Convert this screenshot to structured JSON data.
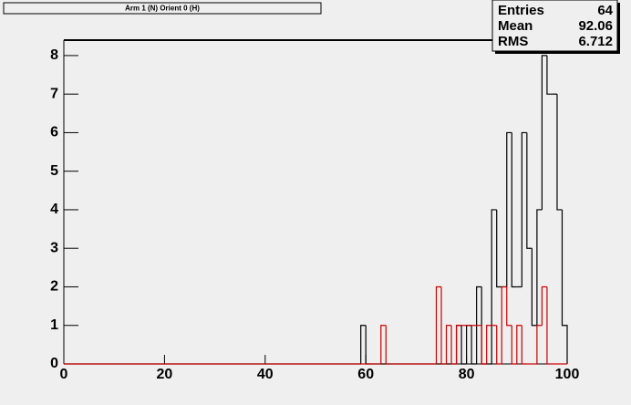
{
  "chart_data": {
    "type": "histogram",
    "title": "Arm 1 (N) Orient 0 (H)",
    "bins": [
      0,
      1,
      2,
      3,
      4,
      5,
      6,
      7,
      8,
      9,
      10,
      11,
      12,
      13,
      14,
      15,
      16,
      17,
      18,
      19,
      20,
      21,
      22,
      23,
      24,
      25,
      26,
      27,
      28,
      29,
      30,
      31,
      32,
      33,
      34,
      35,
      36,
      37,
      38,
      39,
      40,
      41,
      42,
      43,
      44,
      45,
      46,
      47,
      48,
      49,
      50,
      51,
      52,
      53,
      54,
      55,
      56,
      57,
      58,
      59,
      60,
      61,
      62,
      63,
      64,
      65,
      66,
      67,
      68,
      69,
      70,
      71,
      72,
      73,
      74,
      75,
      76,
      77,
      78,
      79,
      80,
      81,
      82,
      83,
      84,
      85,
      86,
      87,
      88,
      89,
      90,
      91,
      92,
      93,
      94,
      95,
      96,
      97,
      98,
      99,
      100
    ],
    "series": [
      {
        "color": "#000000",
        "values": [
          0,
          0,
          0,
          0,
          0,
          0,
          0,
          0,
          0,
          0,
          0,
          0,
          0,
          0,
          0,
          0,
          0,
          0,
          0,
          0,
          0,
          0,
          0,
          0,
          0,
          0,
          0,
          0,
          0,
          0,
          0,
          0,
          0,
          0,
          0,
          0,
          0,
          0,
          0,
          0,
          0,
          0,
          0,
          0,
          0,
          0,
          0,
          0,
          0,
          0,
          0,
          0,
          0,
          0,
          0,
          0,
          0,
          0,
          0,
          1,
          0,
          0,
          0,
          0,
          0,
          0,
          0,
          0,
          0,
          0,
          0,
          0,
          0,
          0,
          0,
          0,
          0,
          0,
          1,
          0,
          1,
          0,
          2,
          0,
          0,
          4,
          2,
          2,
          6,
          2,
          2,
          6,
          3,
          1,
          4,
          8,
          7,
          7,
          4,
          1
        ]
      },
      {
        "color": "#cc0000",
        "values": [
          0,
          0,
          0,
          0,
          0,
          0,
          0,
          0,
          0,
          0,
          0,
          0,
          0,
          0,
          0,
          0,
          0,
          0,
          0,
          0,
          0,
          0,
          0,
          0,
          0,
          0,
          0,
          0,
          0,
          0,
          0,
          0,
          0,
          0,
          0,
          0,
          0,
          0,
          0,
          0,
          0,
          0,
          0,
          0,
          0,
          0,
          0,
          0,
          0,
          0,
          0,
          0,
          0,
          0,
          0,
          0,
          0,
          0,
          0,
          0,
          0,
          0,
          0,
          1,
          0,
          0,
          0,
          0,
          0,
          0,
          0,
          0,
          0,
          0,
          2,
          0,
          1,
          0,
          1,
          1,
          1,
          1,
          1,
          0,
          1,
          1,
          0,
          2,
          1,
          0,
          1,
          0,
          0,
          0,
          1,
          2,
          0,
          0,
          0,
          0
        ]
      }
    ],
    "xlim": [
      0,
      100
    ],
    "xticks": [
      0,
      20,
      40,
      60,
      80,
      100
    ],
    "ylim": [
      0,
      8.4
    ],
    "yticks": [
      0,
      1,
      2,
      3,
      4,
      5,
      6,
      7,
      8
    ],
    "stats": [
      {
        "label": "Entries",
        "value": 64
      },
      {
        "label": "Mean",
        "value": 92.06
      },
      {
        "label": "RMS",
        "value": 6.712
      }
    ]
  }
}
